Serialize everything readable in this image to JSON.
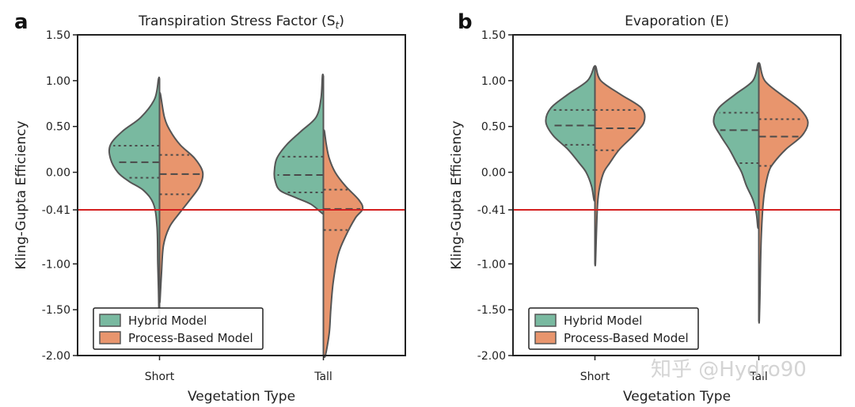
{
  "chart_data": [
    {
      "type": "violin",
      "panel_label": "a",
      "title": "Transpiration Stress Factor (S",
      "title_sub": "t",
      "title_close": ")",
      "xlabel": "Vegetation Type",
      "ylabel": "Kling-Gupta Efficiency",
      "categories": [
        "Short",
        "Tall"
      ],
      "yticks": [
        1.5,
        1.0,
        0.5,
        0.0,
        -0.41,
        -1.0,
        -1.5,
        -2.0
      ],
      "ytick_labels": [
        "1.50",
        "1.00",
        "0.50",
        "0.00",
        "-0.41",
        "-1.00",
        "-1.50",
        "-2.00"
      ],
      "ylim": [
        -2.0,
        1.5
      ],
      "reference_line": -0.41,
      "legend": {
        "position": "lower-left",
        "entries": [
          "Hybrid Model",
          "Process-Based Model"
        ]
      },
      "series": [
        {
          "name": "Hybrid Model",
          "violins": [
            {
              "category": "Short",
              "min": -1.6,
              "max": 1.02,
              "quartiles": [
                -0.06,
                0.11,
                0.29
              ],
              "density": [
                [
                  1.02,
                  0.02
                ],
                [
                  0.8,
                  0.1
                ],
                [
                  0.6,
                  0.38
                ],
                [
                  0.45,
                  0.75
                ],
                [
                  0.3,
                  1.0
                ],
                [
                  0.15,
                  1.0
                ],
                [
                  0.0,
                  0.85
                ],
                [
                  -0.1,
                  0.62
                ],
                [
                  -0.2,
                  0.32
                ],
                [
                  -0.35,
                  0.12
                ],
                [
                  -0.6,
                  0.05
                ],
                [
                  -1.0,
                  0.035
                ],
                [
                  -1.3,
                  0.02
                ],
                [
                  -1.6,
                  0.01
                ]
              ]
            },
            {
              "category": "Tall",
              "min": -0.45,
              "max": 1.05,
              "quartiles": [
                -0.22,
                -0.03,
                0.17
              ],
              "density": [
                [
                  1.05,
                  0.02
                ],
                [
                  0.8,
                  0.05
                ],
                [
                  0.6,
                  0.15
                ],
                [
                  0.45,
                  0.45
                ],
                [
                  0.3,
                  0.75
                ],
                [
                  0.15,
                  0.95
                ],
                [
                  0.0,
                  1.0
                ],
                [
                  -0.1,
                  0.98
                ],
                [
                  -0.2,
                  0.88
                ],
                [
                  -0.28,
                  0.55
                ],
                [
                  -0.35,
                  0.25
                ],
                [
                  -0.45,
                  0.02
                ]
              ]
            }
          ]
        },
        {
          "name": "Process-Based Model",
          "violins": [
            {
              "category": "Short",
              "min": -1.4,
              "max": 0.85,
              "quartiles": [
                -0.24,
                -0.02,
                0.19
              ],
              "density": [
                [
                  0.85,
                  0.02
                ],
                [
                  0.6,
                  0.1
                ],
                [
                  0.45,
                  0.22
                ],
                [
                  0.3,
                  0.42
                ],
                [
                  0.15,
                  0.72
                ],
                [
                  0.0,
                  0.88
                ],
                [
                  -0.15,
                  0.82
                ],
                [
                  -0.3,
                  0.62
                ],
                [
                  -0.45,
                  0.4
                ],
                [
                  -0.6,
                  0.2
                ],
                [
                  -0.8,
                  0.08
                ],
                [
                  -1.1,
                  0.04
                ],
                [
                  -1.4,
                  0.01
                ]
              ]
            },
            {
              "category": "Tall",
              "min": -2.0,
              "max": 0.45,
              "quartiles": [
                -0.63,
                -0.4,
                -0.19
              ],
              "density": [
                [
                  0.45,
                  0.02
                ],
                [
                  0.3,
                  0.06
                ],
                [
                  0.15,
                  0.12
                ],
                [
                  0.0,
                  0.24
                ],
                [
                  -0.15,
                  0.45
                ],
                [
                  -0.3,
                  0.72
                ],
                [
                  -0.4,
                  0.8
                ],
                [
                  -0.5,
                  0.65
                ],
                [
                  -0.7,
                  0.45
                ],
                [
                  -0.9,
                  0.3
                ],
                [
                  -1.2,
                  0.2
                ],
                [
                  -1.5,
                  0.15
                ],
                [
                  -1.75,
                  0.12
                ],
                [
                  -2.0,
                  0.04
                ]
              ]
            }
          ]
        }
      ]
    },
    {
      "type": "violin",
      "panel_label": "b",
      "title": "Evaporation (E",
      "title_sub": "",
      "title_close": ")",
      "xlabel": "Vegetation Type",
      "ylabel": "Kling-Gupta Efficiency",
      "categories": [
        "Short",
        "Tall"
      ],
      "yticks": [
        1.5,
        1.0,
        0.5,
        0.0,
        -0.41,
        -1.0,
        -1.5,
        -2.0
      ],
      "ytick_labels": [
        "1.50",
        "1.00",
        "0.50",
        "0.00",
        "-0.41",
        "-1.00",
        "-1.50",
        "-2.00"
      ],
      "ylim": [
        -2.0,
        1.5
      ],
      "reference_line": -0.41,
      "legend": {
        "position": "lower-left",
        "entries": [
          "Hybrid Model",
          "Process-Based Model"
        ]
      },
      "series": [
        {
          "name": "Hybrid Model",
          "violins": [
            {
              "category": "Short",
              "min": -0.3,
              "max": 1.15,
              "quartiles": [
                0.3,
                0.51,
                0.68
              ],
              "density": [
                [
                  1.15,
                  0.02
                ],
                [
                  1.0,
                  0.15
                ],
                [
                  0.85,
                  0.55
                ],
                [
                  0.7,
                  0.9
                ],
                [
                  0.55,
                  1.0
                ],
                [
                  0.4,
                  0.85
                ],
                [
                  0.25,
                  0.55
                ],
                [
                  0.1,
                  0.32
                ],
                [
                  0.0,
                  0.18
                ],
                [
                  -0.15,
                  0.07
                ],
                [
                  -0.3,
                  0.02
                ]
              ]
            },
            {
              "category": "Tall",
              "min": -0.6,
              "max": 1.18,
              "quartiles": [
                0.1,
                0.46,
                0.65
              ],
              "density": [
                [
                  1.18,
                  0.02
                ],
                [
                  1.0,
                  0.12
                ],
                [
                  0.85,
                  0.48
                ],
                [
                  0.7,
                  0.82
                ],
                [
                  0.55,
                  0.92
                ],
                [
                  0.4,
                  0.78
                ],
                [
                  0.25,
                  0.6
                ],
                [
                  0.1,
                  0.45
                ],
                [
                  0.0,
                  0.35
                ],
                [
                  -0.15,
                  0.25
                ],
                [
                  -0.3,
                  0.12
                ],
                [
                  -0.45,
                  0.05
                ],
                [
                  -0.6,
                  0.02
                ]
              ]
            }
          ]
        },
        {
          "name": "Process-Based Model",
          "violins": [
            {
              "category": "Short",
              "min": -1.0,
              "max": 1.15,
              "quartiles": [
                0.24,
                0.48,
                0.68
              ],
              "density": [
                [
                  1.15,
                  0.02
                ],
                [
                  1.0,
                  0.12
                ],
                [
                  0.85,
                  0.52
                ],
                [
                  0.7,
                  0.95
                ],
                [
                  0.55,
                  1.0
                ],
                [
                  0.4,
                  0.78
                ],
                [
                  0.25,
                  0.5
                ],
                [
                  0.1,
                  0.3
                ],
                [
                  0.0,
                  0.18
                ],
                [
                  -0.15,
                  0.1
                ],
                [
                  -0.3,
                  0.06
                ],
                [
                  -0.5,
                  0.04
                ],
                [
                  -0.75,
                  0.025
                ],
                [
                  -1.0,
                  0.01
                ]
              ]
            },
            {
              "category": "Tall",
              "min": -1.62,
              "max": 1.18,
              "quartiles": [
                0.07,
                0.39,
                0.58
              ],
              "density": [
                [
                  1.18,
                  0.02
                ],
                [
                  1.0,
                  0.12
                ],
                [
                  0.85,
                  0.45
                ],
                [
                  0.7,
                  0.82
                ],
                [
                  0.55,
                  1.0
                ],
                [
                  0.4,
                  0.88
                ],
                [
                  0.25,
                  0.55
                ],
                [
                  0.1,
                  0.3
                ],
                [
                  0.0,
                  0.2
                ],
                [
                  -0.2,
                  0.12
                ],
                [
                  -0.4,
                  0.08
                ],
                [
                  -0.7,
                  0.05
                ],
                [
                  -1.0,
                  0.035
                ],
                [
                  -1.3,
                  0.025
                ],
                [
                  -1.62,
                  0.01
                ]
              ]
            }
          ]
        }
      ]
    }
  ],
  "colors": {
    "hybrid": "#79b9a0",
    "process": "#e8956d",
    "outline": "#555555",
    "reference_line": "#d42020"
  },
  "watermark": "知乎 @Hydro90"
}
